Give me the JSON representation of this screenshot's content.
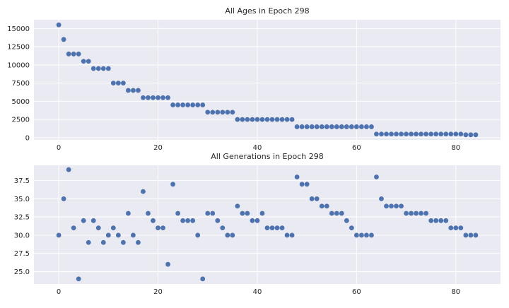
{
  "chart_data": [
    {
      "type": "scatter",
      "title": "All Ages in Epoch 298",
      "xlabel": "",
      "ylabel": "",
      "xlim": [
        -5,
        89
      ],
      "ylim": [
        -300,
        16200
      ],
      "x_ticks": [
        0,
        20,
        40,
        60,
        80
      ],
      "y_ticks": [
        0,
        2500,
        5000,
        7500,
        10000,
        12500,
        15000
      ],
      "grid": true,
      "color": "#4c72b0",
      "x": [
        0,
        1,
        2,
        3,
        4,
        5,
        6,
        7,
        8,
        9,
        10,
        11,
        12,
        13,
        14,
        15,
        16,
        17,
        18,
        19,
        20,
        21,
        22,
        23,
        24,
        25,
        26,
        27,
        28,
        29,
        30,
        31,
        32,
        33,
        34,
        35,
        36,
        37,
        38,
        39,
        40,
        41,
        42,
        43,
        44,
        45,
        46,
        47,
        48,
        49,
        50,
        51,
        52,
        53,
        54,
        55,
        56,
        57,
        58,
        59,
        60,
        61,
        62,
        63,
        64,
        65,
        66,
        67,
        68,
        69,
        70,
        71,
        72,
        73,
        74,
        75,
        76,
        77,
        78,
        79,
        80,
        81,
        82,
        83,
        84
      ],
      "y": [
        15500,
        13500,
        11500,
        11500,
        11500,
        10500,
        10500,
        9500,
        9500,
        9500,
        9500,
        7500,
        7500,
        7500,
        6500,
        6500,
        6500,
        5500,
        5500,
        5500,
        5500,
        5500,
        5500,
        4500,
        4500,
        4500,
        4500,
        4500,
        4500,
        4500,
        3500,
        3500,
        3500,
        3500,
        3500,
        3500,
        2500,
        2500,
        2500,
        2500,
        2500,
        2500,
        2500,
        2500,
        2500,
        2500,
        2500,
        2500,
        1500,
        1500,
        1500,
        1500,
        1500,
        1500,
        1500,
        1500,
        1500,
        1500,
        1500,
        1500,
        1500,
        1500,
        1500,
        1500,
        500,
        500,
        500,
        500,
        500,
        500,
        500,
        500,
        500,
        500,
        500,
        500,
        500,
        500,
        500,
        500,
        500,
        500,
        400,
        400,
        400
      ]
    },
    {
      "type": "scatter",
      "title": "All Generations in Epoch 298",
      "xlabel": "",
      "ylabel": "",
      "xlim": [
        -5,
        89
      ],
      "ylim": [
        23.3,
        39.6
      ],
      "x_ticks": [
        0,
        20,
        40,
        60,
        80
      ],
      "y_ticks": [
        25.0,
        27.5,
        30.0,
        32.5,
        35.0,
        37.5
      ],
      "grid": true,
      "color": "#4c72b0",
      "x": [
        0,
        1,
        2,
        3,
        4,
        5,
        6,
        7,
        8,
        9,
        10,
        11,
        12,
        13,
        14,
        15,
        16,
        17,
        18,
        19,
        20,
        21,
        22,
        23,
        24,
        25,
        26,
        27,
        28,
        29,
        30,
        31,
        32,
        33,
        34,
        35,
        36,
        37,
        38,
        39,
        40,
        41,
        42,
        43,
        44,
        45,
        46,
        47,
        48,
        49,
        50,
        51,
        52,
        53,
        54,
        55,
        56,
        57,
        58,
        59,
        60,
        61,
        62,
        63,
        64,
        65,
        66,
        67,
        68,
        69,
        70,
        71,
        72,
        73,
        74,
        75,
        76,
        77,
        78,
        79,
        80,
        81,
        82,
        83,
        84
      ],
      "y": [
        30,
        35,
        39,
        31,
        24,
        32,
        29,
        32,
        31,
        29,
        30,
        31,
        30,
        29,
        33,
        30,
        29,
        36,
        33,
        32,
        31,
        31,
        26,
        37,
        33,
        32,
        32,
        32,
        30,
        24,
        33,
        33,
        32,
        31,
        30,
        30,
        34,
        33,
        33,
        32,
        32,
        33,
        31,
        31,
        31,
        31,
        30,
        30,
        38,
        37,
        37,
        35,
        35,
        34,
        34,
        33,
        33,
        33,
        32,
        31,
        30,
        30,
        30,
        30,
        38,
        35,
        34,
        34,
        34,
        34,
        33,
        33,
        33,
        33,
        33,
        32,
        32,
        32,
        32,
        31,
        31,
        31,
        30,
        30,
        30
      ]
    }
  ]
}
